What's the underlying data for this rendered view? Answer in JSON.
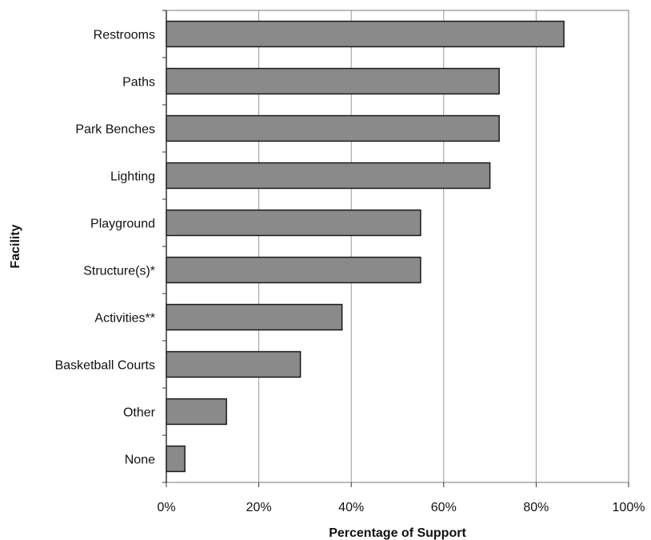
{
  "chart_data": {
    "type": "bar",
    "orientation": "horizontal",
    "xlabel": "Percentage of Support",
    "ylabel": "Facility",
    "categories": [
      "Restrooms",
      "Paths",
      "Park Benches",
      "Lighting",
      "Playground",
      "Structure(s)*",
      "Activities**",
      "Basketball Courts",
      "Other",
      "None"
    ],
    "values": [
      86,
      72,
      72,
      70,
      55,
      55,
      38,
      29,
      13,
      4
    ],
    "xlim": [
      0,
      100
    ],
    "x_ticks": [
      "0%",
      "20%",
      "40%",
      "60%",
      "80%",
      "100%"
    ],
    "grid": "vertical",
    "legend": "none",
    "bar_color": "#8a8a8a",
    "bar_edge_color": "#1a1a1a"
  }
}
